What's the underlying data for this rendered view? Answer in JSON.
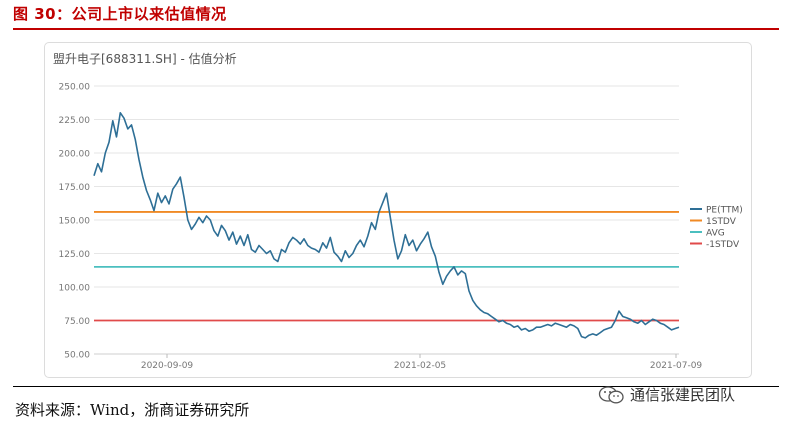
{
  "figure": {
    "title": "图 30：公司上市以来估值情况",
    "source": "资料来源：Wind，浙商证券研究所",
    "watermark": "通信张建民团队",
    "watermark_icon": "wechat-icon"
  },
  "colors": {
    "title_red": "#c00000",
    "pe": "#2e6f96",
    "plus1": "#f08a24",
    "avg": "#4bbfbf",
    "minus1": "#e04a4a",
    "grid": "#e6e6e6",
    "axis_text": "#777777"
  },
  "chart_data": {
    "type": "line",
    "title": "盟升电子[688311.SH] - 估值分析",
    "ylim": [
      50,
      250
    ],
    "yticks": [
      "250.00",
      "225.00",
      "200.00",
      "175.00",
      "150.00",
      "125.00",
      "100.00",
      "75.00",
      "50.00"
    ],
    "xticks": [
      "2020-09-09",
      "2021-02-05",
      "2021-07-09"
    ],
    "grid": "horizontal",
    "legend_position": "right",
    "series": [
      {
        "name": "PE(TTM)",
        "values": [
          183,
          192,
          186,
          200,
          208,
          224,
          212,
          230,
          226,
          218,
          221,
          210,
          195,
          182,
          172,
          165,
          157,
          170,
          163,
          168,
          162,
          173,
          177,
          182,
          167,
          150,
          143,
          147,
          152,
          148,
          153,
          150,
          142,
          138,
          146,
          142,
          135,
          141,
          132,
          138,
          131,
          139,
          128,
          126,
          131,
          128,
          125,
          127,
          121,
          119,
          128,
          126,
          133,
          137,
          135,
          132,
          136,
          131,
          129,
          128,
          126,
          133,
          129,
          137,
          126,
          123,
          119,
          127,
          122,
          125,
          131,
          135,
          130,
          138,
          148,
          143,
          156,
          163,
          170,
          152,
          135,
          121,
          127,
          139,
          131,
          135,
          127,
          132,
          136,
          141,
          130,
          123,
          111,
          102,
          108,
          112,
          115,
          109,
          112,
          110,
          97,
          90,
          86,
          83,
          81,
          80,
          78,
          76,
          74,
          75,
          73,
          72,
          70,
          71,
          68,
          69,
          67,
          68,
          70,
          70,
          71,
          72,
          71,
          73,
          72,
          71,
          70,
          72,
          71,
          69,
          63,
          62,
          64,
          65,
          64,
          66,
          68,
          69,
          70,
          75,
          82,
          78,
          77,
          76,
          74,
          73,
          75,
          72,
          74,
          76,
          75,
          73,
          72,
          70,
          68,
          69,
          70
        ]
      },
      {
        "name": "1STDV",
        "values": [
          156
        ]
      },
      {
        "name": "AVG",
        "values": [
          115
        ]
      },
      {
        "name": "-1STDV",
        "values": [
          75
        ]
      }
    ]
  }
}
